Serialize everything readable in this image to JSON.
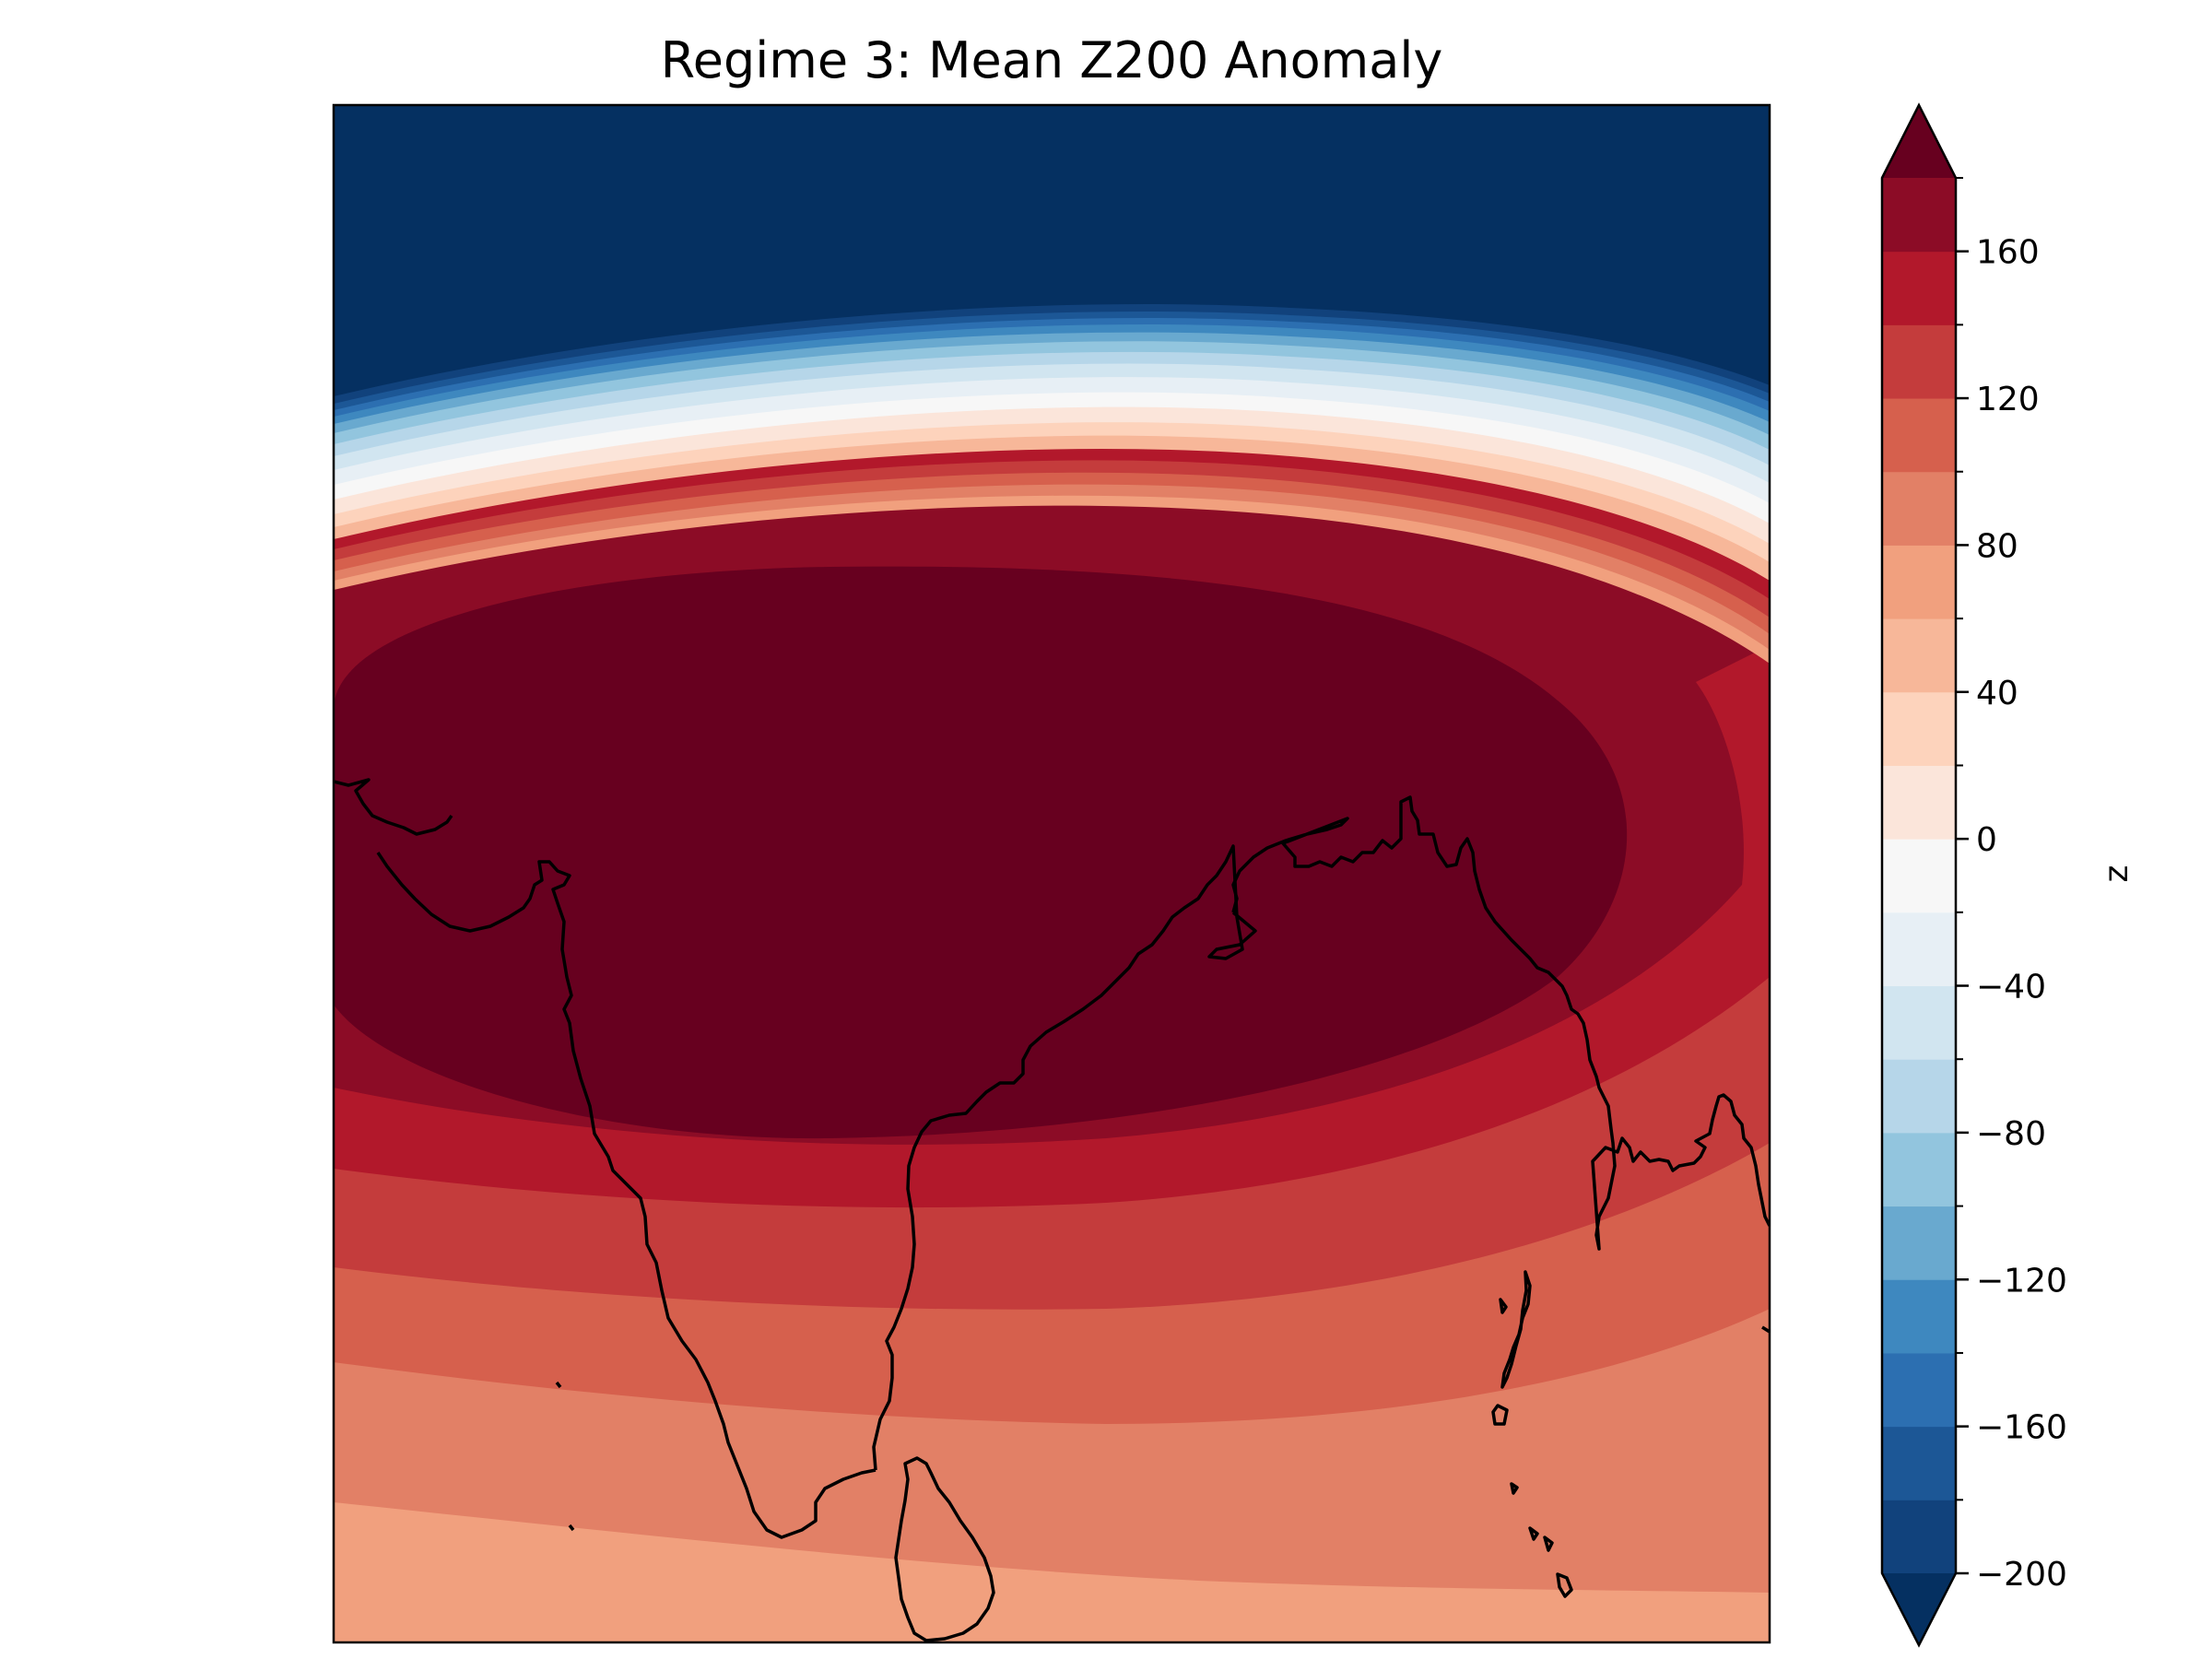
{
  "figure": {
    "title": "Regime 3: Mean Z200 Anomaly"
  },
  "map": {
    "region": "South Asia / Bay of Bengal",
    "coastline_color": "#000000",
    "frame_color": "#000000"
  },
  "colorbar": {
    "label": "z",
    "ticks": [
      {
        "value": 160,
        "text": "160"
      },
      {
        "value": 120,
        "text": "120"
      },
      {
        "value": 80,
        "text": "80"
      },
      {
        "value": 40,
        "text": "40"
      },
      {
        "value": 0,
        "text": "0"
      },
      {
        "value": -40,
        "text": "−40"
      },
      {
        "value": -80,
        "text": "−80"
      },
      {
        "value": -120,
        "text": "−120"
      },
      {
        "value": -160,
        "text": "−160"
      },
      {
        "value": -200,
        "text": "−200"
      }
    ],
    "range": [
      -200,
      180
    ],
    "step": 20,
    "extend": "both",
    "over_color": "#67001f",
    "under_color": "#053061",
    "colors": [
      "#11427c",
      "#1c5796",
      "#2c6fb1",
      "#3e88bf",
      "#69a9cf",
      "#92c5de",
      "#b6d6e9",
      "#d1e5f0",
      "#e7eff5",
      "#f7f7f7",
      "#fbe5da",
      "#fdd3bc",
      "#f7b799",
      "#f1a07e",
      "#e28066",
      "#d6604d",
      "#c43c3c",
      "#b2182b",
      "#8c0c26"
    ]
  }
}
